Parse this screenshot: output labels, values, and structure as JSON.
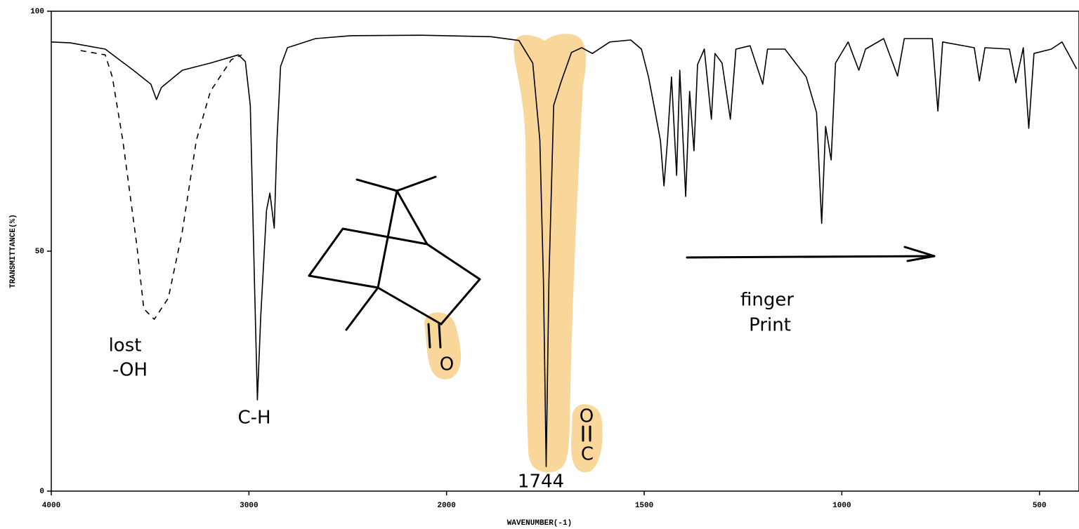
{
  "chart_data": {
    "type": "line",
    "x_label": "WAVENUMBER(-1)",
    "y_label": "TRANSMITTANCE(%)",
    "xlim": [
      4000,
      400
    ],
    "xreverse": true,
    "xscale_break": 2000,
    "xticks": [
      4000,
      3000,
      2000,
      1500,
      1000,
      500
    ],
    "ylim": [
      0,
      100
    ],
    "yticks": [
      0,
      50,
      100
    ],
    "series": [
      {
        "color": "#000000",
        "dashed": false,
        "x": [
          4000,
          3904,
          3727,
          3585,
          3496,
          3468,
          3443,
          3337,
          3195,
          3053,
          3018,
          2993,
          2972,
          2957,
          2940,
          2911,
          2894,
          2883,
          2872,
          2858,
          2840,
          2805,
          2663,
          2486,
          2131,
          1888,
          1817,
          1782,
          1764,
          1755,
          1748,
          1741,
          1729,
          1711,
          1684,
          1658,
          1631,
          1587,
          1534,
          1507,
          1489,
          1472,
          1459,
          1450,
          1441,
          1431,
          1418,
          1410,
          1395,
          1385,
          1374,
          1365,
          1348,
          1330,
          1321,
          1303,
          1282,
          1268,
          1232,
          1200,
          1188,
          1144,
          1090,
          1064,
          1051,
          1041,
          1027,
          1016,
          984,
          957,
          940,
          894,
          859,
          842,
          771,
          757,
          745,
          665,
          652,
          638,
          576,
          560,
          541,
          527,
          514,
          470,
          443,
          406
        ],
        "values": [
          93.6,
          93.4,
          92.1,
          87.7,
          84.8,
          81.6,
          84.1,
          87.7,
          89.2,
          90.9,
          89.5,
          80.4,
          43.9,
          19.0,
          36.5,
          58.5,
          62.1,
          58.5,
          54.8,
          73.1,
          88.5,
          92.4,
          94.3,
          94.9,
          95.0,
          94.7,
          93.9,
          89.2,
          73.1,
          43.9,
          5.1,
          43.9,
          80.4,
          85.1,
          91.4,
          92.4,
          91.2,
          93.6,
          94.0,
          92.1,
          86.3,
          78.9,
          73.1,
          63.6,
          73.1,
          86.3,
          65.8,
          87.7,
          61.4,
          83.3,
          70.9,
          88.9,
          92.1,
          77.5,
          91.2,
          89.2,
          77.5,
          92.1,
          92.8,
          84.8,
          92.1,
          92.1,
          86.3,
          78.9,
          55.8,
          76.0,
          69.0,
          89.2,
          93.6,
          87.7,
          92.1,
          94.3,
          86.5,
          94.3,
          94.3,
          79.2,
          93.6,
          92.4,
          85.5,
          92.4,
          92.1,
          85.1,
          92.4,
          75.6,
          91.2,
          92.1,
          93.6,
          88.0
        ]
      },
      {
        "color": "#000000",
        "dashed": true,
        "x": [
          3851,
          3727,
          3691,
          3638,
          3567,
          3532,
          3479,
          3408,
          3337,
          3266,
          3195,
          3089,
          3036
        ],
        "values": [
          91.8,
          90.9,
          86.3,
          73.1,
          51.2,
          38.0,
          35.8,
          40.2,
          54.1,
          73.1,
          83.3,
          89.9,
          90.9
        ]
      }
    ],
    "annotations": [
      "lost",
      "-OH",
      "C-H",
      "1744",
      "finger",
      "Print",
      "O",
      "O",
      "C"
    ],
    "highlight_color": "#f9d69a"
  }
}
